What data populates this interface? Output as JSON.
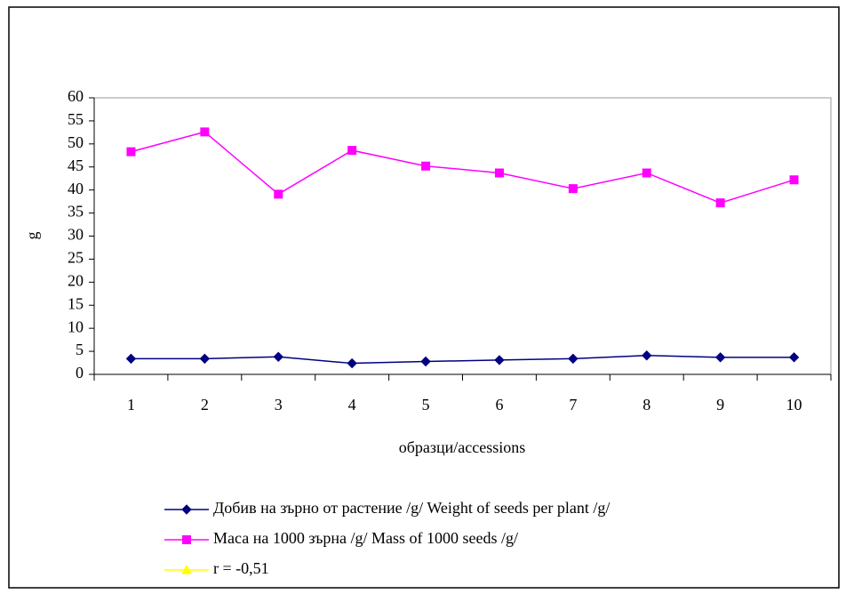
{
  "chart_data": {
    "type": "line",
    "x_label": "образци/accessions",
    "y_label": "g",
    "categories": [
      "1",
      "2",
      "3",
      "4",
      "5",
      "6",
      "7",
      "8",
      "9",
      "10"
    ],
    "series": [
      {
        "name": "Добив на зърно от растение /g/ Weight of seeds per plant /g/",
        "color": "#000080",
        "marker": "diamond",
        "values": [
          3.4,
          3.4,
          3.8,
          2.4,
          2.8,
          3.1,
          3.4,
          4.1,
          3.7,
          3.7
        ]
      },
      {
        "name": "Маса на 1000 зърна /g/ Mass of 1000 seeds /g/",
        "color": "#ff00ff",
        "marker": "square",
        "values": [
          48.3,
          52.6,
          39.1,
          48.6,
          45.2,
          43.7,
          40.3,
          43.7,
          37.2,
          42.2
        ]
      },
      {
        "name": "r = -0,51",
        "color": "#ffff00",
        "marker": "triangle",
        "values": [
          null,
          null,
          null,
          null,
          null,
          null,
          null,
          null,
          null,
          null
        ]
      }
    ],
    "ylim": [
      0,
      60
    ],
    "yticks": [
      0,
      5,
      10,
      15,
      20,
      25,
      30,
      35,
      40,
      45,
      50,
      55,
      60
    ],
    "grid": false
  }
}
